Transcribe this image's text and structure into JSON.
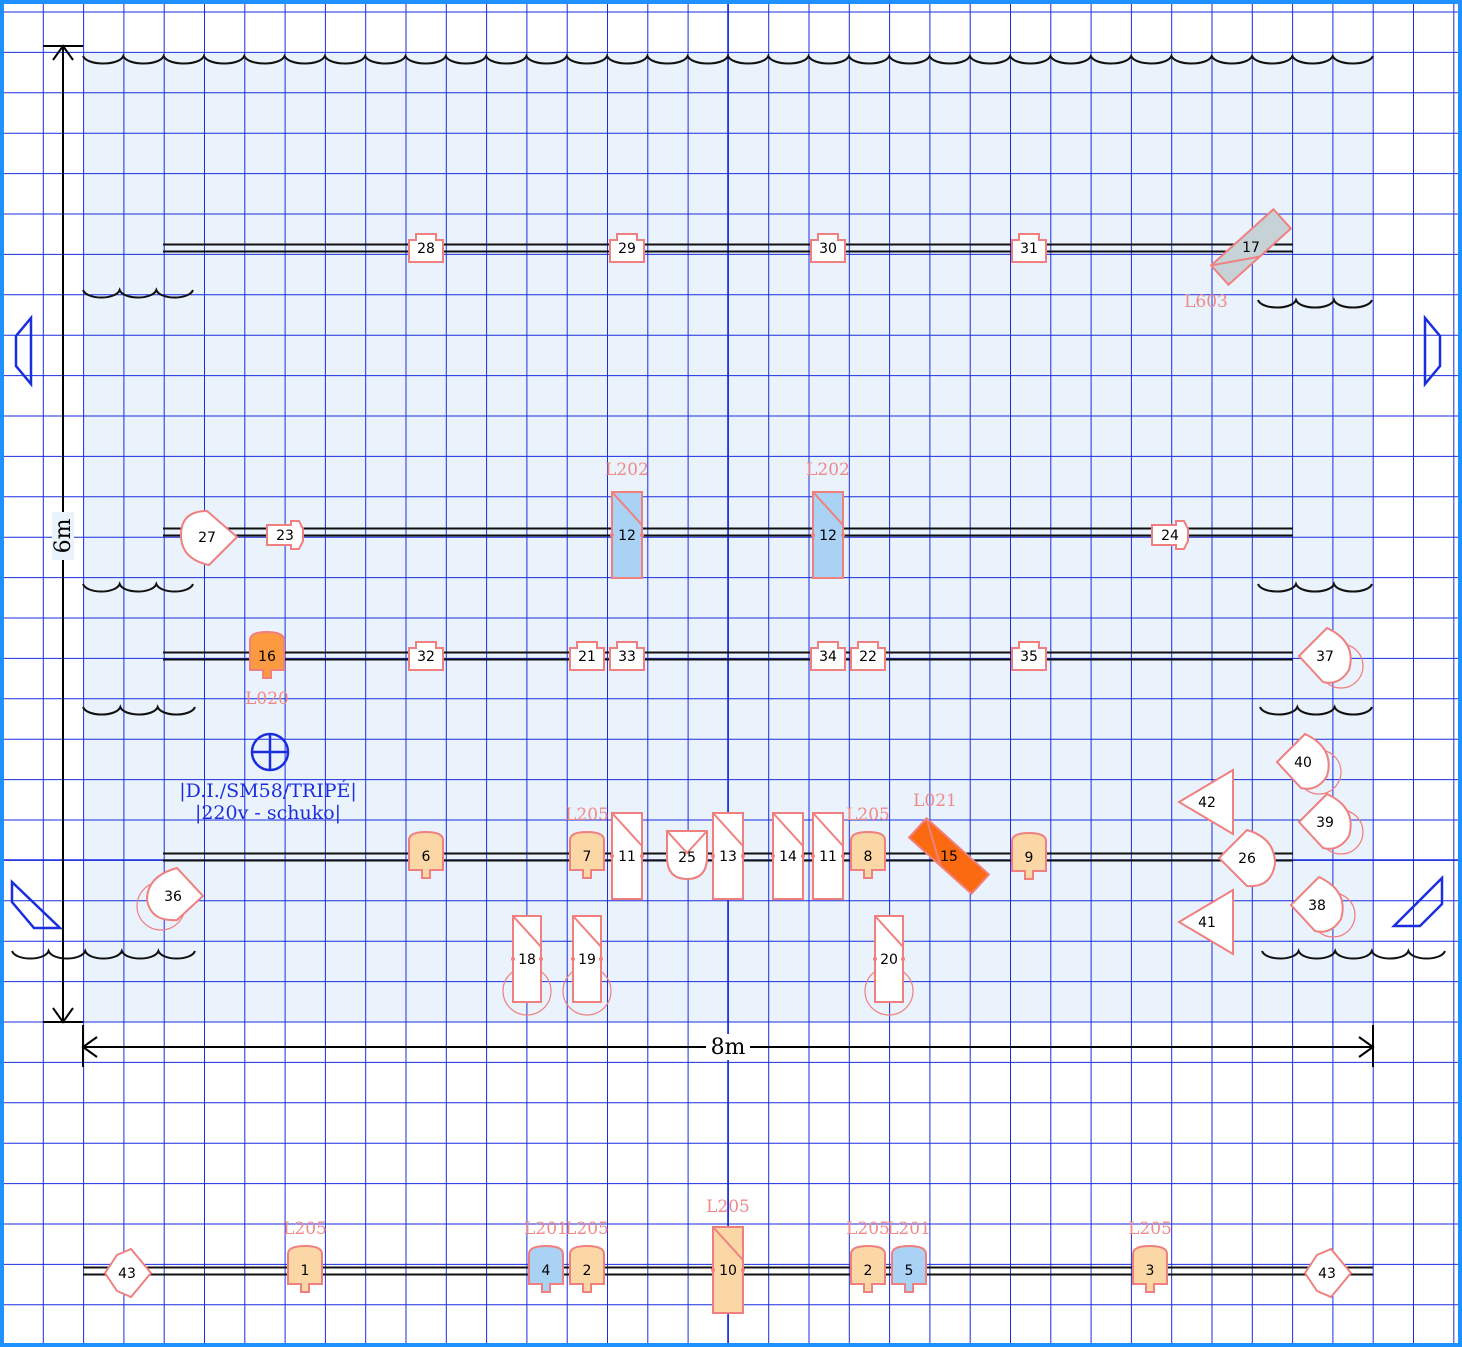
{
  "dimensions": {
    "width_label": "8m",
    "height_label": "6m"
  },
  "note": {
    "line1": "|D.I./SM58/TRIPÉ|",
    "line2": "|220v - schuko|"
  },
  "colors": {
    "grid": "#1a2ee0",
    "stage_fill": "#eaf3fc",
    "fixture_stroke": "#f08080",
    "label": "#f08a8a",
    "par_fill": "#fbd7a6",
    "blue_fill": "#a9d2f5",
    "gray_fill": "#c6d2d6",
    "orange_fill": "#fb6a10",
    "amber_fill": "#fb9a40"
  },
  "fixtures": [
    {
      "num": "28",
      "shape": "fresnel"
    },
    {
      "num": "29",
      "shape": "fresnel"
    },
    {
      "num": "30",
      "shape": "fresnel"
    },
    {
      "num": "31",
      "shape": "fresnel"
    },
    {
      "num": "17",
      "shape": "bar-gray",
      "label": "L603"
    },
    {
      "num": "27",
      "shape": "followspot"
    },
    {
      "num": "23",
      "shape": "fresnel-side"
    },
    {
      "num": "12",
      "shape": "profile-blue",
      "label": "L202"
    },
    {
      "num": "12",
      "shape": "profile-blue",
      "label": "L202"
    },
    {
      "num": "24",
      "shape": "fresnel-side"
    },
    {
      "num": "16",
      "shape": "par-orange",
      "label": "L020"
    },
    {
      "num": "32",
      "shape": "fresnel"
    },
    {
      "num": "21",
      "shape": "fresnel"
    },
    {
      "num": "33",
      "shape": "fresnel"
    },
    {
      "num": "34",
      "shape": "fresnel"
    },
    {
      "num": "22",
      "shape": "fresnel"
    },
    {
      "num": "35",
      "shape": "fresnel"
    },
    {
      "num": "37",
      "shape": "spot-left"
    },
    {
      "num": "40",
      "shape": "spot-left"
    },
    {
      "num": "39",
      "shape": "spot-left"
    },
    {
      "num": "42",
      "shape": "triangle"
    },
    {
      "num": "26",
      "shape": "followspot-left"
    },
    {
      "num": "38",
      "shape": "spot-left"
    },
    {
      "num": "41",
      "shape": "triangle"
    },
    {
      "num": "6",
      "shape": "par"
    },
    {
      "num": "7",
      "shape": "par",
      "label": "L205"
    },
    {
      "num": "11",
      "shape": "profile"
    },
    {
      "num": "25",
      "shape": "scoop"
    },
    {
      "num": "13",
      "shape": "profile"
    },
    {
      "num": "14",
      "shape": "profile"
    },
    {
      "num": "11",
      "shape": "profile"
    },
    {
      "num": "8",
      "shape": "par",
      "label": "L205"
    },
    {
      "num": "15",
      "shape": "bar-orange",
      "label": "L021"
    },
    {
      "num": "9",
      "shape": "par"
    },
    {
      "num": "36",
      "shape": "spot-right"
    },
    {
      "num": "18",
      "shape": "profile-stand"
    },
    {
      "num": "19",
      "shape": "profile-stand"
    },
    {
      "num": "20",
      "shape": "profile-stand"
    },
    {
      "num": "43",
      "shape": "diamond"
    },
    {
      "num": "1",
      "shape": "par",
      "label": "L205"
    },
    {
      "num": "4",
      "shape": "par-blue",
      "label": "L201"
    },
    {
      "num": "2",
      "shape": "par",
      "label": "L205"
    },
    {
      "num": "10",
      "shape": "profile-peach",
      "label": "L205"
    },
    {
      "num": "2",
      "shape": "par",
      "label": "L205"
    },
    {
      "num": "5",
      "shape": "par-blue",
      "label": "L201"
    },
    {
      "num": "3",
      "shape": "par",
      "label": "L205"
    },
    {
      "num": "43",
      "shape": "diamond"
    }
  ]
}
